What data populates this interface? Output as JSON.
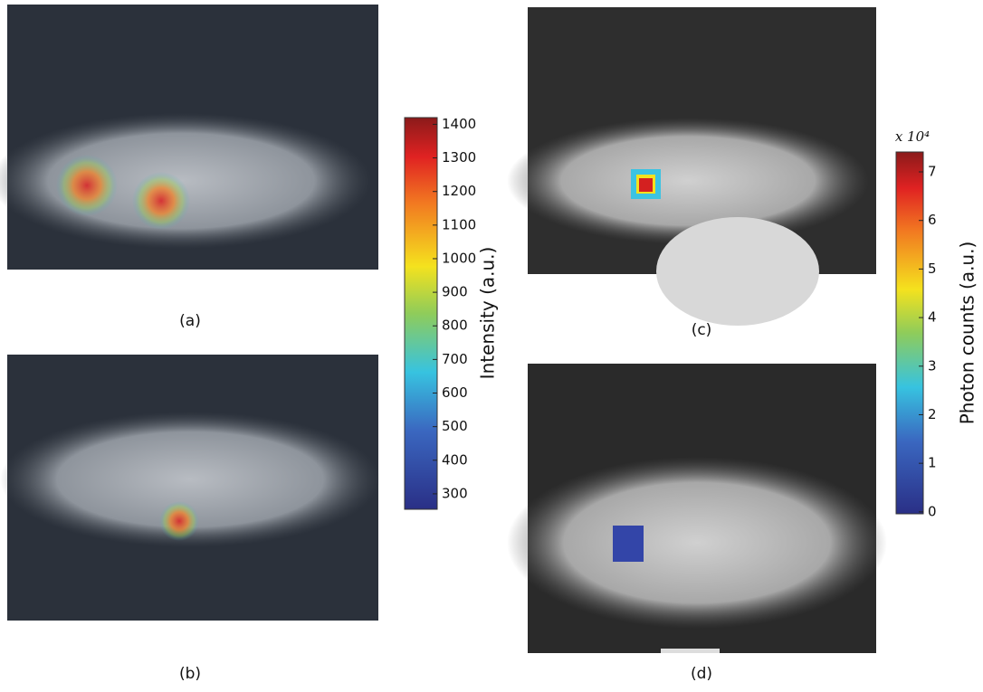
{
  "panels": [
    {
      "label": "(a)"
    },
    {
      "label": "(b)"
    },
    {
      "label": "(c)"
    },
    {
      "label": "(d)"
    }
  ],
  "colorbars": [
    {
      "label": "Intensity (a.u.)",
      "lim": [
        254,
        1420
      ],
      "ticks": [
        300,
        400,
        500,
        600,
        700,
        800,
        900,
        1000,
        1100,
        1200,
        1300,
        1400
      ]
    },
    {
      "label": "Photon counts (a.u.)",
      "multiplier": "x 10⁴",
      "lim": [
        -0.04,
        7.41
      ],
      "ticks": [
        0,
        1,
        2,
        3,
        4,
        5,
        6,
        7
      ]
    }
  ]
}
